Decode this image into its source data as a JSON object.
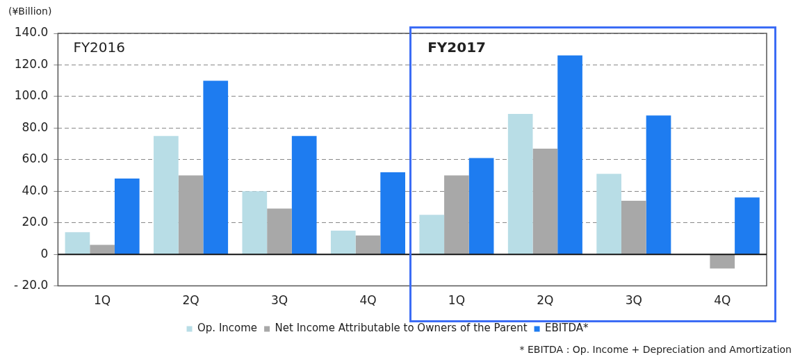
{
  "chart_data": {
    "type": "bar",
    "ylabel": "(¥Billion)",
    "categories": [
      "1Q",
      "2Q",
      "3Q",
      "4Q",
      "1Q",
      "2Q",
      "3Q",
      "4Q"
    ],
    "series": [
      {
        "name": "Op. Income",
        "color": "#b8dde6",
        "values": [
          14,
          75,
          40,
          15,
          25,
          89,
          51,
          null
        ]
      },
      {
        "name": "Net Income Attributable to Owners of the Parent",
        "color": "#a8a8a8",
        "values": [
          6,
          50,
          29,
          12,
          50,
          67,
          34,
          -9
        ]
      },
      {
        "name": "EBITDA*",
        "color": "#1e7cf0",
        "values": [
          48,
          110,
          75,
          52,
          61,
          126,
          88,
          36
        ]
      }
    ],
    "ylim": [
      -20,
      140
    ],
    "yticks": [
      {
        "value": -20,
        "label": "- 20.0"
      },
      {
        "value": 0,
        "label": "0"
      },
      {
        "value": 20,
        "label": "20.0"
      },
      {
        "value": 40,
        "label": "40.0"
      },
      {
        "value": 60,
        "label": "60.0"
      },
      {
        "value": 80,
        "label": "80.0"
      },
      {
        "value": 100,
        "label": "100.0"
      },
      {
        "value": 120,
        "label": "120.0"
      },
      {
        "value": 140,
        "label": "140.0"
      }
    ],
    "grid": "y",
    "legend": "bottom",
    "annotations": [
      "FY2016",
      "FY2017",
      "* EBITDA : Op. Income + Depreciation and Amortization"
    ]
  }
}
